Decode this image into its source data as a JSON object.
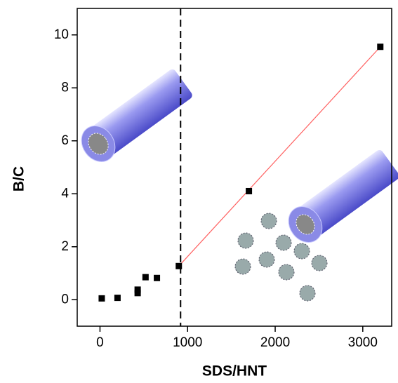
{
  "chart_data": {
    "type": "scatter",
    "x_label": "SDS/HNT",
    "y_label": "B/C",
    "xlim": [
      -260,
      3330
    ],
    "ylim": [
      -1,
      11
    ],
    "xticks": [
      0,
      1000,
      2000,
      3000
    ],
    "yticks": [
      0,
      2,
      4,
      6,
      8,
      10
    ],
    "series": [
      {
        "name": "B/C",
        "color": "#000000",
        "x": [
          20,
          200,
          430,
          430,
          520,
          650,
          900,
          1700,
          3200
        ],
        "values": [
          0.05,
          0.07,
          0.25,
          0.38,
          0.85,
          0.82,
          1.27,
          4.1,
          9.55
        ]
      }
    ],
    "fit": {
      "color": "#ff6060",
      "x": [
        900,
        3200
      ],
      "values": [
        1.27,
        9.55
      ]
    },
    "vline": 920
  }
}
